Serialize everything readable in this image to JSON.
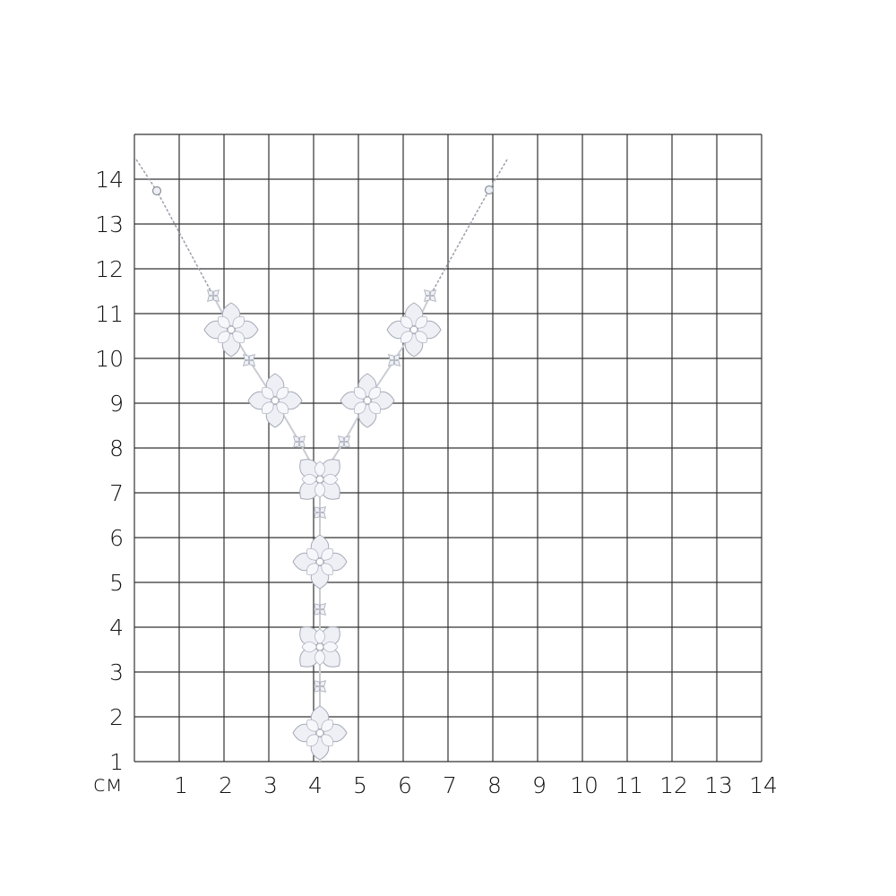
{
  "ruler": {
    "unit": "см",
    "x_ticks": [
      "1",
      "2",
      "3",
      "4",
      "5",
      "6",
      "7",
      "8",
      "9",
      "10",
      "11",
      "12",
      "13",
      "14"
    ],
    "y_ticks": [
      "1",
      "2",
      "3",
      "4",
      "5",
      "6",
      "7",
      "8",
      "9",
      "10",
      "11",
      "12",
      "13",
      "14"
    ],
    "grid_color": "#333333"
  },
  "product": {
    "metal_color": "#c9ccd3",
    "stone_color": "#eef0f6"
  }
}
